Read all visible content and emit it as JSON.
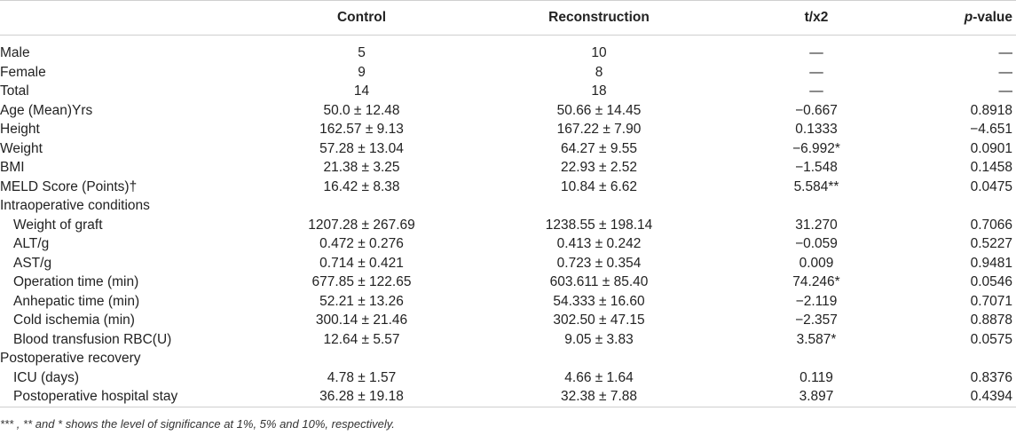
{
  "table": {
    "headers": {
      "label": "",
      "control": "Control",
      "reconstruction": "Reconstruction",
      "stat": "t/x2",
      "p_prefix": "p",
      "p_suffix": "-value"
    },
    "rows": [
      {
        "label": "Male",
        "control": "5",
        "reconstruction": "10",
        "stat": "—",
        "p": "—",
        "indent": false
      },
      {
        "label": "Female",
        "control": "9",
        "reconstruction": "8",
        "stat": "—",
        "p": "—",
        "indent": false
      },
      {
        "label": "Total",
        "control": "14",
        "reconstruction": "18",
        "stat": "—",
        "p": "—",
        "indent": false
      },
      {
        "label": "Age (Mean)Yrs",
        "control": "50.0 ± 12.48",
        "reconstruction": "50.66 ± 14.45",
        "stat": "−0.667",
        "p": "0.8918",
        "indent": false
      },
      {
        "label": "Height",
        "control": "162.57 ± 9.13",
        "reconstruction": "167.22 ± 7.90",
        "stat": "0.1333",
        "p": "−4.651",
        "indent": false
      },
      {
        "label": "Weight",
        "control": "57.28 ± 13.04",
        "reconstruction": "64.27 ± 9.55",
        "stat": "−6.992*",
        "p": "0.0901",
        "indent": false
      },
      {
        "label": "BMI",
        "control": "21.38 ± 3.25",
        "reconstruction": "22.93 ± 2.52",
        "stat": "−1.548",
        "p": "0.1458",
        "indent": false
      },
      {
        "label": "MELD Score (Points)†",
        "control": "16.42 ± 8.38",
        "reconstruction": "10.84 ± 6.62",
        "stat": "5.584**",
        "p": "0.0475",
        "indent": false
      },
      {
        "label": "Intraoperative conditions",
        "control": "",
        "reconstruction": "",
        "stat": "",
        "p": "",
        "indent": false
      },
      {
        "label": "Weight of graft",
        "control": "1207.28 ± 267.69",
        "reconstruction": "1238.55 ± 198.14",
        "stat": "31.270",
        "p": "0.7066",
        "indent": true
      },
      {
        "label": "ALT/g",
        "control": "0.472 ± 0.276",
        "reconstruction": "0.413 ± 0.242",
        "stat": "−0.059",
        "p": "0.5227",
        "indent": true
      },
      {
        "label": "AST/g",
        "control": "0.714 ± 0.421",
        "reconstruction": "0.723 ± 0.354",
        "stat": "0.009",
        "p": "0.9481",
        "indent": true
      },
      {
        "label": "Operation time (min)",
        "control": "677.85 ± 122.65",
        "reconstruction": "603.611 ± 85.40",
        "stat": "74.246*",
        "p": "0.0546",
        "indent": true
      },
      {
        "label": "Anhepatic time (min)",
        "control": "52.21 ± 13.26",
        "reconstruction": "54.333 ± 16.60",
        "stat": "−2.119",
        "p": "0.7071",
        "indent": true
      },
      {
        "label": "Cold ischemia (min)",
        "control": "300.14 ± 21.46",
        "reconstruction": "302.50 ± 47.15",
        "stat": "−2.357",
        "p": "0.8878",
        "indent": true
      },
      {
        "label": "Blood transfusion RBC(U)",
        "control": "12.64 ± 5.57",
        "reconstruction": "9.05 ± 3.83",
        "stat": "3.587*",
        "p": "0.0575",
        "indent": true
      },
      {
        "label": "Postoperative recovery",
        "control": "",
        "reconstruction": "",
        "stat": "",
        "p": "",
        "indent": false
      },
      {
        "label": "ICU (days)",
        "control": "4.78 ± 1.57",
        "reconstruction": "4.66 ± 1.64",
        "stat": "0.119",
        "p": "0.8376",
        "indent": true
      },
      {
        "label": "Postoperative hospital stay",
        "control": "36.28 ± 19.18",
        "reconstruction": "32.38 ± 7.88",
        "stat": "3.897",
        "p": "0.4394",
        "indent": true
      }
    ]
  },
  "footnote": "*** , ** and * shows the level of significance at 1%, 5% and 10%, respectively."
}
